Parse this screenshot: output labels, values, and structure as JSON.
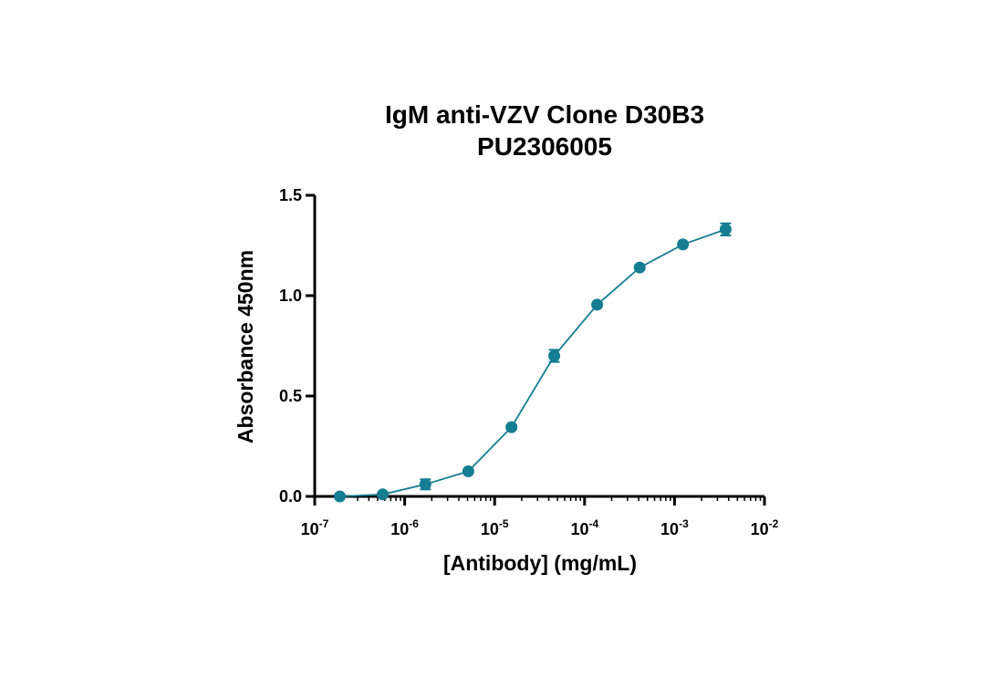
{
  "chart_data": {
    "type": "scatter",
    "title": [
      "IgM anti-VZV Clone D30B3",
      "PU2306005"
    ],
    "xlabel": "[Antibody] (mg/mL)",
    "ylabel": "Absorbance 450nm",
    "x_scale": "log",
    "xlim": [
      1e-07,
      0.01
    ],
    "ylim": [
      0,
      1.5
    ],
    "x_ticks": [
      {
        "base": "10",
        "exp": "-7",
        "value": 1e-07
      },
      {
        "base": "10",
        "exp": "-6",
        "value": 1e-06
      },
      {
        "base": "10",
        "exp": "-5",
        "value": 1e-05
      },
      {
        "base": "10",
        "exp": "-4",
        "value": 0.0001
      },
      {
        "base": "10",
        "exp": "-3",
        "value": 0.001
      },
      {
        "base": "10",
        "exp": "-2",
        "value": 0.01
      }
    ],
    "y_ticks": [
      "0.0",
      "0.5",
      "1.0",
      "1.5"
    ],
    "grid": false,
    "color": "#157d92",
    "series": [
      {
        "x": [
          1.9e-07,
          5.7e-07,
          1.7e-06,
          5.1e-06,
          1.54e-05,
          4.6e-05,
          0.000138,
          0.00041,
          0.00124,
          0.0037
        ],
        "y": [
          0.0,
          0.01,
          0.06,
          0.125,
          0.345,
          0.7,
          0.955,
          1.14,
          1.255,
          1.33
        ],
        "error": [
          0.0,
          0.01,
          0.025,
          0.005,
          0.01,
          0.03,
          0.005,
          0.005,
          0.005,
          0.03
        ]
      }
    ]
  }
}
